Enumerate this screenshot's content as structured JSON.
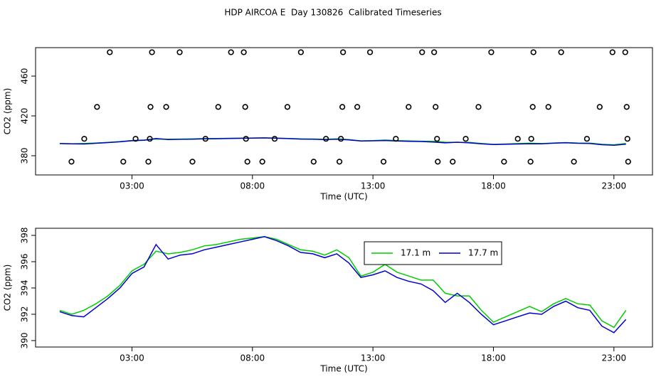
{
  "title": "HDP AIRCOA E  Day 130826  Calibrated Timeseries",
  "chart_data": [
    {
      "type": "scatter",
      "xlabel": "Time (UTC)",
      "ylabel": "CO2 (ppm)",
      "xlim": [
        -1,
        24.6
      ],
      "ylim": [
        360.7,
        488.6
      ],
      "xticks": [
        {
          "value": 3,
          "label": "03:00"
        },
        {
          "value": 8,
          "label": "08:00"
        },
        {
          "value": 13,
          "label": "13:00"
        },
        {
          "value": 18,
          "label": "18:00"
        },
        {
          "value": 23,
          "label": "23:00"
        }
      ],
      "yticks": [
        380,
        420,
        460
      ],
      "points": {
        "color": "#000000",
        "x": [
          2.08,
          3.83,
          4.98,
          7.11,
          7.64,
          10.01,
          11.76,
          12.88,
          15.04,
          15.54,
          17.91,
          19.66,
          20.81,
          22.94,
          23.47,
          1.55,
          3.77,
          4.42,
          6.58,
          7.7,
          9.45,
          11.73,
          12.35,
          14.48,
          15.6,
          17.38,
          19.63,
          20.28,
          22.41,
          23.53,
          1.02,
          3.15,
          3.74,
          6.05,
          7.73,
          8.92,
          11.05,
          11.67,
          13.95,
          15.66,
          16.85,
          19.01,
          19.57,
          21.88,
          23.56,
          0.49,
          2.64,
          3.68,
          5.51,
          7.79,
          8.41,
          10.54,
          11.61,
          13.44,
          15.69,
          16.31,
          18.44,
          19.54,
          21.34,
          23.59
        ],
        "values": [
          484,
          484,
          484,
          484,
          484,
          484,
          484,
          484,
          484,
          484,
          484,
          484,
          484,
          484,
          484,
          429,
          429,
          429,
          429,
          429,
          429,
          429,
          429,
          429,
          429,
          429,
          429,
          429,
          429,
          429,
          397,
          397,
          397,
          397,
          397,
          397,
          397,
          397,
          397,
          397,
          397,
          397,
          397,
          397,
          397,
          374,
          374,
          374,
          374,
          374,
          374,
          374,
          374,
          374,
          374,
          374,
          374,
          374,
          374,
          374
        ]
      },
      "x": [
        0,
        0.5,
        1,
        1.5,
        2,
        2.5,
        3,
        3.5,
        4,
        4.5,
        5,
        5.5,
        6,
        6.5,
        7,
        7.5,
        8,
        8.5,
        9,
        9.5,
        10,
        10.5,
        11,
        11.5,
        12,
        12.5,
        13,
        13.5,
        14,
        14.5,
        15,
        15.5,
        16,
        16.5,
        17,
        17.5,
        18,
        18.5,
        19,
        19.5,
        20,
        20.5,
        21,
        21.5,
        22,
        22.5,
        23,
        23.5
      ],
      "series": [
        {
          "color": "#00cc00",
          "values": [
            392.3,
            392.0,
            392.3,
            392.8,
            393.4,
            394.2,
            395.3,
            395.8,
            396.8,
            396.6,
            396.7,
            396.9,
            397.2,
            397.3,
            397.5,
            397.7,
            397.8,
            397.9,
            397.7,
            397.3,
            396.9,
            396.8,
            396.5,
            396.9,
            396.3,
            394.9,
            395.2,
            395.8,
            395.2,
            394.9,
            394.6,
            394.6,
            393.6,
            393.4,
            393.4,
            392.3,
            391.4,
            391.8,
            392.2,
            392.6,
            392.2,
            392.8,
            393.2,
            392.8,
            392.7,
            391.5,
            391.0,
            392.3
          ]
        },
        {
          "color": "#0000cc",
          "values": [
            392.2,
            391.9,
            391.8,
            392.5,
            393.2,
            394.0,
            395.1,
            395.6,
            397.3,
            396.2,
            396.5,
            396.6,
            396.9,
            397.1,
            397.3,
            397.5,
            397.7,
            397.9,
            397.6,
            397.2,
            396.7,
            396.6,
            396.3,
            396.6,
            395.9,
            394.8,
            395.0,
            395.3,
            394.8,
            394.5,
            394.3,
            393.8,
            392.9,
            393.6,
            392.9,
            392.0,
            391.2,
            391.5,
            391.8,
            392.1,
            392.0,
            392.6,
            393.0,
            392.5,
            392.3,
            391.1,
            390.6,
            391.6
          ]
        }
      ]
    },
    {
      "type": "line",
      "xlabel": "Time (UTC)",
      "ylabel": "CO2 (ppm)",
      "xlim": [
        -1,
        24.6
      ],
      "ylim": [
        389.51,
        398.54
      ],
      "xticks": [
        {
          "value": 3,
          "label": "03:00"
        },
        {
          "value": 8,
          "label": "08:00"
        },
        {
          "value": 13,
          "label": "13:00"
        },
        {
          "value": 18,
          "label": "18:00"
        },
        {
          "value": 23,
          "label": "23:00"
        }
      ],
      "yticks": [
        390,
        392,
        394,
        396,
        398
      ],
      "legend": "top",
      "x": [
        0,
        0.5,
        1,
        1.5,
        2,
        2.5,
        3,
        3.5,
        4,
        4.5,
        5,
        5.5,
        6,
        6.5,
        7,
        7.5,
        8,
        8.5,
        9,
        9.5,
        10,
        10.5,
        11,
        11.5,
        12,
        12.5,
        13,
        13.5,
        14,
        14.5,
        15,
        15.5,
        16,
        16.5,
        17,
        17.5,
        18,
        18.5,
        19,
        19.5,
        20,
        20.5,
        21,
        21.5,
        22,
        22.5,
        23,
        23.5
      ],
      "series": [
        {
          "name": "17.1 m",
          "color": "#00cc00",
          "values": [
            392.3,
            392.0,
            392.3,
            392.8,
            393.4,
            394.2,
            395.3,
            395.8,
            396.8,
            396.6,
            396.7,
            396.9,
            397.2,
            397.3,
            397.5,
            397.7,
            397.8,
            397.9,
            397.7,
            397.3,
            396.9,
            396.8,
            396.5,
            396.9,
            396.3,
            394.9,
            395.2,
            395.8,
            395.2,
            394.9,
            394.6,
            394.6,
            393.6,
            393.4,
            393.4,
            392.3,
            391.4,
            391.8,
            392.2,
            392.6,
            392.2,
            392.8,
            393.2,
            392.8,
            392.7,
            391.5,
            391.0,
            392.3
          ]
        },
        {
          "name": "17.7 m",
          "color": "#0000cc",
          "values": [
            392.2,
            391.9,
            391.8,
            392.5,
            393.2,
            394.0,
            395.1,
            395.6,
            397.3,
            396.2,
            396.5,
            396.6,
            396.9,
            397.1,
            397.3,
            397.5,
            397.7,
            397.9,
            397.6,
            397.2,
            396.7,
            396.6,
            396.3,
            396.6,
            395.9,
            394.8,
            395.0,
            395.3,
            394.8,
            394.5,
            394.3,
            393.8,
            392.9,
            393.6,
            392.9,
            392.0,
            391.2,
            391.5,
            391.8,
            392.1,
            392.0,
            392.6,
            393.0,
            392.5,
            392.3,
            391.1,
            390.6,
            391.6
          ]
        }
      ]
    }
  ]
}
